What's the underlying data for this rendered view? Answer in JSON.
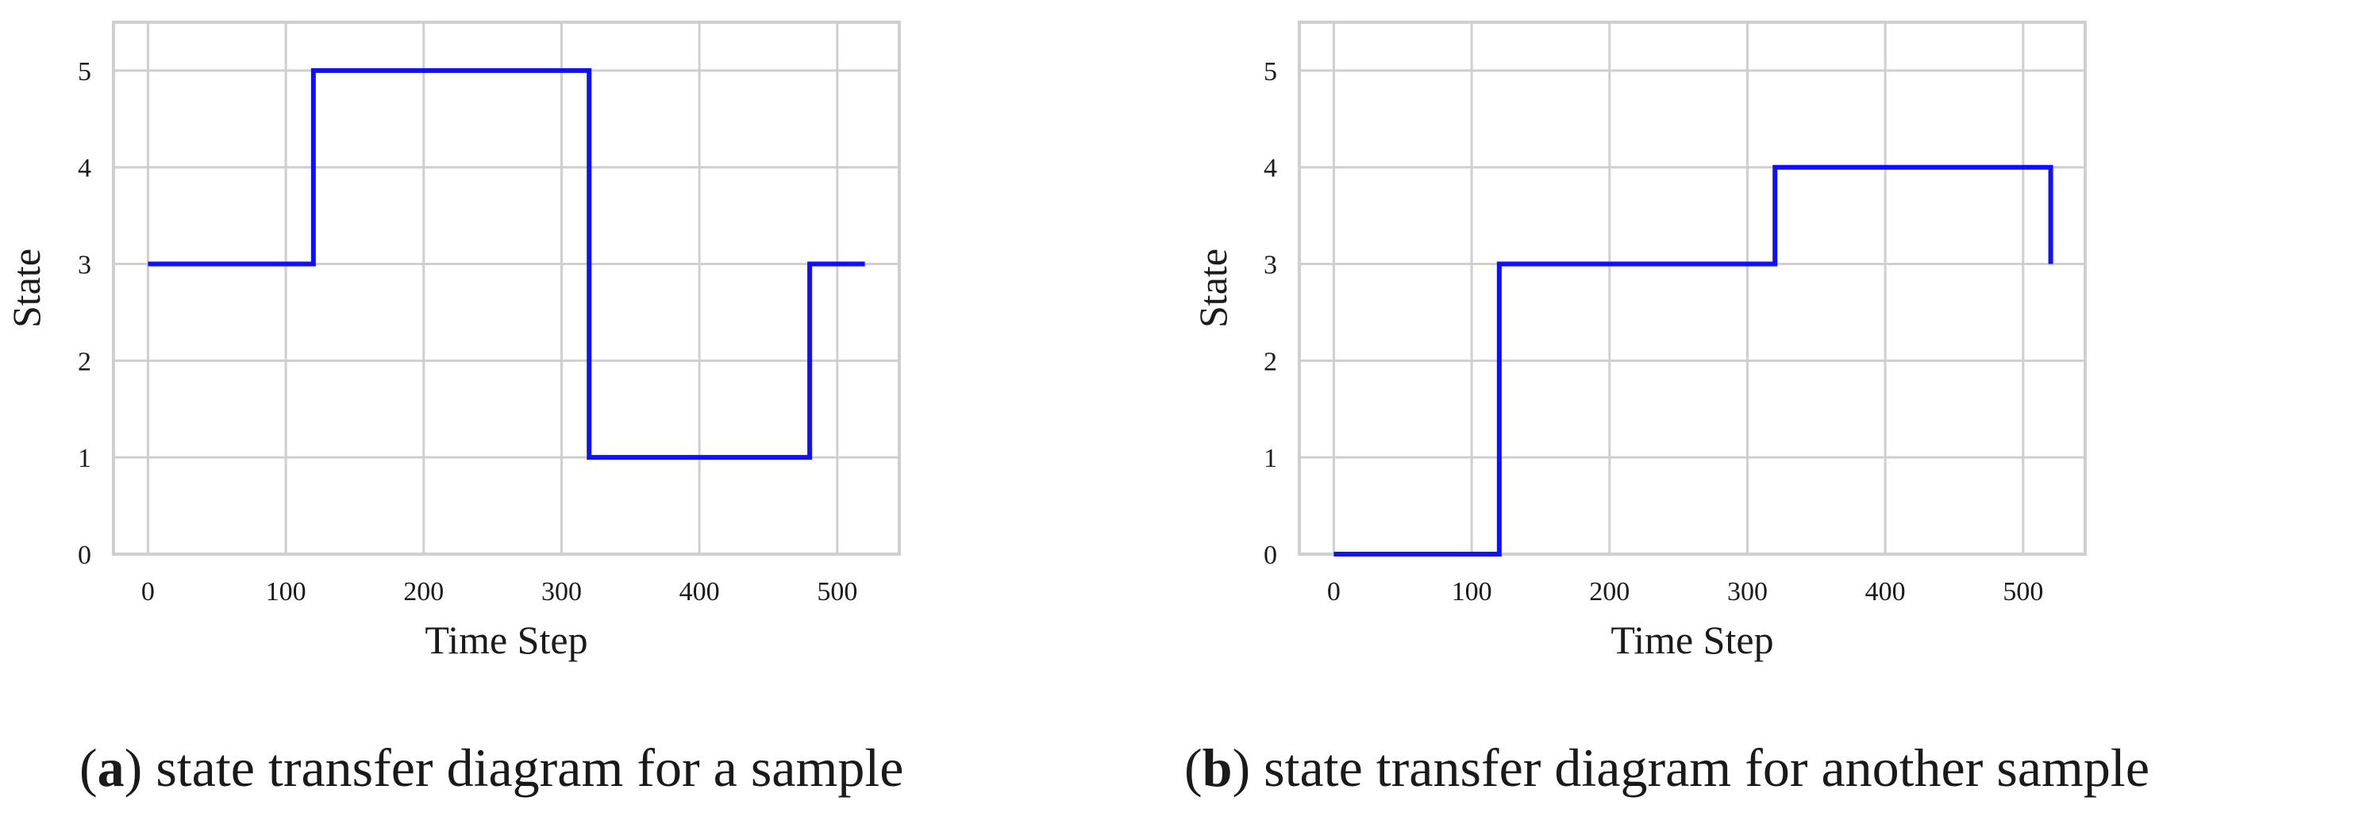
{
  "chart_data": [
    {
      "type": "line",
      "step": "post",
      "x": [
        0,
        120,
        320,
        480,
        520
      ],
      "y": [
        3,
        5,
        1,
        3,
        3
      ],
      "xlabel": "Time Step",
      "ylabel": "State",
      "xlim": [
        -25,
        545
      ],
      "ylim": [
        0,
        5.5
      ],
      "xticks": [
        0,
        100,
        200,
        300,
        400,
        500
      ],
      "yticks": [
        0,
        1,
        2,
        3,
        4,
        5
      ],
      "grid": true,
      "color": "#1010ff",
      "caption_letter": "a",
      "caption_text": " state transfer diagram for a sample"
    },
    {
      "type": "line",
      "step": "post",
      "x": [
        0,
        120,
        320,
        520
      ],
      "y": [
        0,
        3,
        4,
        3
      ],
      "xlabel": "Time Step",
      "ylabel": "State",
      "xlim": [
        -25,
        545
      ],
      "ylim": [
        0,
        5.5
      ],
      "xticks": [
        0,
        100,
        200,
        300,
        400,
        500
      ],
      "yticks": [
        0,
        1,
        2,
        3,
        4,
        5
      ],
      "grid": true,
      "color": "#1010ff",
      "caption_letter": "b",
      "caption_text": " state transfer diagram for another sample"
    }
  ]
}
